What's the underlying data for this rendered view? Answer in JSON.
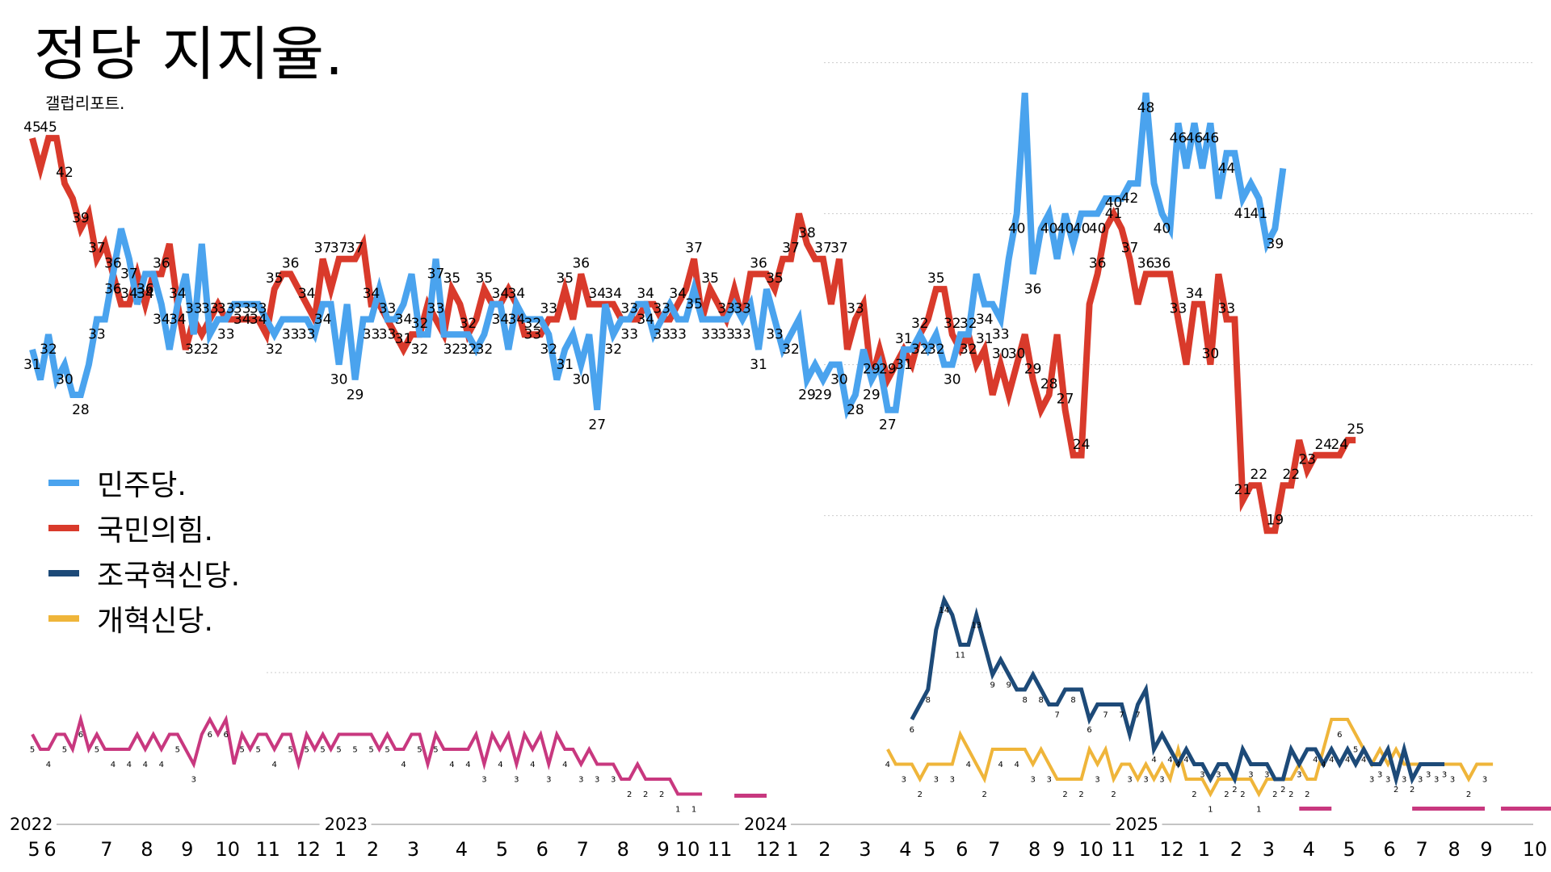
{
  "title": "정당 지지율.",
  "subtitle": "갤럽리포트.",
  "colors": {
    "minju": "#4aa3ee",
    "ppp": "#d93a2b",
    "cho": "#1d4a78",
    "reform": "#efb53a",
    "other": "#c8387f",
    "grid": "#cccccc"
  },
  "legend": [
    {
      "name": "민주당.",
      "color": "#4aa3ee"
    },
    {
      "name": "국민의힘.",
      "color": "#d93a2b"
    },
    {
      "name": "조국혁신당.",
      "color": "#1d4a78"
    },
    {
      "name": "개혁신당.",
      "color": "#efb53a"
    }
  ],
  "chart_data": {
    "type": "line",
    "x_axis": {
      "years": [
        {
          "label": "2022",
          "index": 0
        },
        {
          "label": "2023",
          "index": 39
        },
        {
          "label": "2024",
          "index": 91
        },
        {
          "label": "2025",
          "index": 137
        }
      ],
      "months": [
        {
          "label": "5",
          "index": 0
        },
        {
          "label": "6",
          "index": 2
        },
        {
          "label": "7",
          "index": 9
        },
        {
          "label": "8",
          "index": 14
        },
        {
          "label": "9",
          "index": 19
        },
        {
          "label": "10",
          "index": 24
        },
        {
          "label": "11",
          "index": 29
        },
        {
          "label": "12",
          "index": 34
        },
        {
          "label": "1",
          "index": 38
        },
        {
          "label": "2",
          "index": 42
        },
        {
          "label": "3",
          "index": 47
        },
        {
          "label": "4",
          "index": 53
        },
        {
          "label": "5",
          "index": 58
        },
        {
          "label": "6",
          "index": 63
        },
        {
          "label": "7",
          "index": 68
        },
        {
          "label": "8",
          "index": 73
        },
        {
          "label": "9",
          "index": 78
        },
        {
          "label": "10",
          "index": 81
        },
        {
          "label": "11",
          "index": 85
        },
        {
          "label": "12",
          "index": 91
        },
        {
          "label": "1",
          "index": 94
        },
        {
          "label": "2",
          "index": 98
        },
        {
          "label": "3",
          "index": 103
        },
        {
          "label": "4",
          "index": 108
        },
        {
          "label": "5",
          "index": 111
        },
        {
          "label": "6",
          "index": 115
        },
        {
          "label": "7",
          "index": 119
        },
        {
          "label": "8",
          "index": 124
        },
        {
          "label": "9",
          "index": 127
        },
        {
          "label": "10",
          "index": 131
        },
        {
          "label": "11",
          "index": 135
        },
        {
          "label": "12",
          "index": 141
        },
        {
          "label": "1",
          "index": 145
        },
        {
          "label": "2",
          "index": 149
        },
        {
          "label": "3",
          "index": 153
        },
        {
          "label": "4",
          "index": 158
        },
        {
          "label": "5",
          "index": 163
        },
        {
          "label": "6",
          "index": 168
        },
        {
          "label": "7",
          "index": 172
        },
        {
          "label": "8",
          "index": 176
        },
        {
          "label": "9",
          "index": 180
        },
        {
          "label": "10",
          "index": 186
        }
      ]
    },
    "series": [
      {
        "name": "민주당.",
        "color": "#4aa3ee",
        "values": [
          31,
          29,
          32,
          29,
          30,
          28,
          28,
          30,
          33,
          33,
          36,
          39,
          37,
          34,
          36,
          36,
          34,
          31,
          34,
          36,
          32,
          38,
          32,
          33,
          33,
          34,
          34,
          34,
          34,
          33,
          32,
          33,
          33,
          33,
          33,
          32,
          34,
          34,
          30,
          34,
          29,
          33,
          33,
          35,
          33,
          33,
          34,
          36,
          32,
          32,
          37,
          32,
          32,
          32,
          32,
          31,
          32,
          34,
          34,
          31,
          34,
          33,
          33,
          33,
          32,
          29,
          31,
          32,
          30,
          32,
          27,
          34,
          32,
          33,
          33,
          34,
          34,
          32,
          33,
          34,
          33,
          33,
          35,
          33,
          33,
          33,
          33,
          34,
          33,
          34,
          31,
          35,
          33,
          31,
          32,
          33,
          29,
          30,
          29,
          30,
          30,
          27,
          28,
          31,
          29,
          30,
          27,
          27,
          31,
          31,
          32,
          31,
          32,
          30,
          30,
          32,
          32,
          36,
          34,
          34,
          33,
          37,
          40,
          48,
          36,
          39,
          40,
          37,
          40,
          38,
          40,
          40,
          40,
          41,
          41,
          41,
          42,
          42,
          48,
          42,
          40,
          39,
          46,
          43,
          46,
          43,
          46,
          41,
          44,
          44,
          41,
          42,
          41,
          38,
          39,
          43
        ]
      },
      {
        "name": "국민의힘.",
        "color": "#d93a2b",
        "values": [
          45,
          43,
          45,
          45,
          42,
          41,
          39,
          40,
          37,
          38,
          36,
          34,
          34,
          36,
          34,
          36,
          36,
          38,
          34,
          31,
          33,
          32,
          33,
          34,
          33,
          33,
          33,
          33,
          33,
          32,
          35,
          36,
          36,
          35,
          34,
          33,
          37,
          35,
          37,
          37,
          37,
          38,
          34,
          34,
          33,
          32,
          31,
          32,
          32,
          34,
          33,
          32,
          35,
          34,
          32,
          33,
          35,
          34,
          34,
          35,
          34,
          32,
          32,
          32,
          33,
          33,
          35,
          33,
          36,
          34,
          34,
          34,
          34,
          33,
          33,
          33,
          34,
          34,
          33,
          33,
          34,
          35,
          37,
          33,
          35,
          34,
          33,
          35,
          33,
          36,
          36,
          36,
          35,
          37,
          37,
          40,
          38,
          37,
          37,
          34,
          37,
          31,
          33,
          34,
          29,
          31,
          29,
          30,
          31,
          30,
          32,
          33,
          35,
          35,
          32,
          31,
          32,
          30,
          31,
          28,
          30,
          28,
          30,
          32,
          29,
          27,
          28,
          32,
          27,
          24,
          24,
          34,
          36,
          39,
          40,
          39,
          37,
          34,
          36,
          36,
          36,
          36,
          33,
          30,
          34,
          34,
          30,
          36,
          33,
          33,
          21,
          22,
          22,
          19,
          19,
          22,
          22,
          25,
          23,
          24,
          24,
          24,
          24,
          25,
          25
        ]
      },
      {
        "name": "조국혁신당.",
        "color": "#1d4a78",
        "start_index": 137,
        "values": [
          6,
          7,
          8,
          12,
          14,
          13,
          11,
          11,
          13,
          11,
          9,
          10,
          9,
          8,
          8,
          9,
          8,
          7,
          7,
          8,
          8,
          8,
          6,
          7,
          7,
          7,
          7,
          5,
          7,
          8,
          4,
          5,
          4,
          3,
          4,
          3,
          3,
          2,
          3,
          3,
          2,
          4,
          3,
          3,
          3,
          2,
          2,
          4,
          3,
          4,
          4,
          3,
          4,
          3,
          4,
          3,
          4,
          3,
          3,
          4,
          2,
          4,
          2,
          3,
          3,
          3,
          3
        ]
      },
      {
        "name": "개혁신당.",
        "color": "#efb53a",
        "start_index": 135,
        "values": [
          4,
          3,
          3,
          3,
          2,
          3,
          3,
          3,
          3,
          5,
          4,
          3,
          2,
          4,
          4,
          4,
          4,
          4,
          3,
          4,
          3,
          2,
          2,
          2,
          2,
          4,
          3,
          4,
          2,
          3,
          3,
          2,
          3,
          2,
          3,
          2,
          4,
          2,
          2,
          2,
          1,
          2,
          2,
          2,
          2,
          2,
          1,
          2,
          2,
          2,
          2,
          3,
          2,
          2,
          4,
          6,
          6,
          6,
          5,
          4,
          3,
          4,
          3,
          4,
          3,
          3,
          3,
          3,
          3,
          3,
          3,
          3,
          2,
          3,
          3,
          3
        ]
      },
      {
        "name": "",
        "color": "#c8387f",
        "values": [
          5,
          4,
          4,
          5,
          5,
          4,
          6,
          4,
          5,
          4,
          4,
          4,
          4,
          5,
          4,
          5,
          4,
          5,
          5,
          4,
          3,
          5,
          6,
          5,
          6,
          3,
          5,
          4,
          5,
          5,
          4,
          5,
          5,
          3,
          5,
          4,
          5,
          4,
          5,
          5,
          5,
          5,
          5,
          4,
          5,
          4,
          4,
          5,
          5,
          3,
          5,
          4,
          4,
          4,
          4,
          5,
          3,
          5,
          4,
          5,
          3,
          5,
          4,
          5,
          3,
          5,
          4,
          4,
          3,
          4,
          3,
          3,
          3,
          2,
          2,
          3,
          2,
          2,
          2,
          2,
          1,
          1,
          1,
          1
        ],
        "tail_values": [
          1,
          1,
          1,
          1,
          1,
          1,
          1,
          1,
          1,
          1,
          1,
          1,
          1,
          1,
          1,
          1,
          1,
          1,
          1,
          1,
          1,
          1
        ]
      }
    ],
    "point_labels_minju": [
      "31",
      "29",
      "32",
      "30",
      "28",
      "30",
      "33",
      "39",
      "36",
      "37",
      "36",
      "36",
      "36",
      "34",
      "31",
      "34",
      "36",
      "32",
      "38",
      "32",
      "33",
      "33",
      "34",
      "32",
      "34",
      "33",
      "33",
      "32",
      "34",
      "32",
      "34",
      "30",
      "34",
      "29",
      "33",
      "35",
      "33",
      "33",
      "36",
      "32",
      "37",
      "32",
      "33",
      "32",
      "35",
      "32",
      "31",
      "34",
      "33",
      "32",
      "35",
      "33",
      "29",
      "32",
      "30",
      "32",
      "27",
      "34",
      "33",
      "34",
      "33",
      "34",
      "33",
      "35",
      "33",
      "34",
      "33",
      "33",
      "35",
      "34",
      "31",
      "35",
      "33",
      "31",
      "29",
      "30",
      "30",
      "30",
      "30",
      "28",
      "31",
      "32",
      "30",
      "27",
      "31",
      "31",
      "32",
      "31",
      "32",
      "30",
      "32",
      "36",
      "34",
      "33",
      "32",
      "37",
      "40",
      "48",
      "36",
      "39",
      "40",
      "38",
      "40",
      "38",
      "40",
      "41",
      "41",
      "42",
      "48",
      "42",
      "39",
      "46",
      "43",
      "46",
      "43",
      "46",
      "41",
      "44",
      "41",
      "41",
      "39",
      "43"
    ],
    "point_labels_ppp": [
      "45",
      "43",
      "45",
      "42",
      "41",
      "39",
      "36",
      "34",
      "34",
      "36",
      "38",
      "34",
      "31",
      "32",
      "33",
      "36",
      "35",
      "34",
      "37",
      "35",
      "37",
      "37",
      "38",
      "34",
      "33",
      "31",
      "35",
      "33",
      "35",
      "34",
      "35",
      "32",
      "33",
      "32",
      "35",
      "36",
      "34",
      "34",
      "33",
      "34",
      "37",
      "35",
      "34",
      "35",
      "36",
      "36",
      "40",
      "37",
      "37",
      "34",
      "37",
      "31",
      "34",
      "29",
      "30",
      "32",
      "33",
      "35",
      "35",
      "32",
      "32",
      "31",
      "28",
      "28",
      "30",
      "32",
      "29",
      "28",
      "27",
      "24",
      "34",
      "39",
      "38",
      "40",
      "39",
      "34",
      "36",
      "36",
      "33",
      "35",
      "30",
      "34",
      "30",
      "36",
      "33",
      "21",
      "22",
      "19",
      "22",
      "25",
      "23",
      "24",
      "24",
      "25"
    ],
    "y_range": [
      0,
      50
    ],
    "grid": true,
    "legend_position": "left-middle"
  }
}
